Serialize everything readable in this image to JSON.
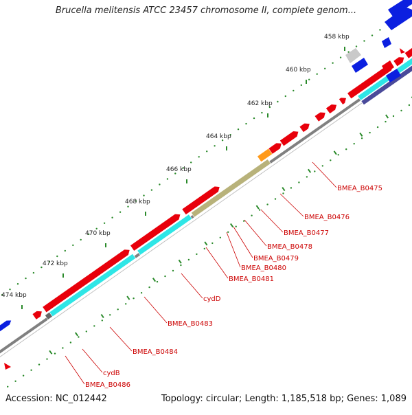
{
  "map": {
    "title": "Brucella melitensis ATCC 23457 chromosome II, complete genom...",
    "accession": "Accession: NC_012442",
    "summary": "Topology: circular; Length: 1,185,518 bp; Genes: 1,089"
  },
  "colors": {
    "backbone": "#808080",
    "forward_gene": "#e8000b",
    "cds": "#2ee6e6",
    "cds_alt": "#b8b27a",
    "cds_dark": "#4a4a9a",
    "orange": "#ff9a1a",
    "blue_gene": "#0b1fe0",
    "gray_gene": "#c9c9c9",
    "tick": "#2a8a2a",
    "label": "#cc0000"
  },
  "kbp_labels": [
    "458 kbp",
    "460 kbp",
    "462 kbp",
    "464 kbp",
    "466 kbp",
    "468 kbp",
    "470 kbp",
    "472 kbp",
    "474 kbp"
  ],
  "gene_labels": [
    "BMEA_B0475",
    "BMEA_B0476",
    "BMEA_B0477",
    "BMEA_B0478",
    "BMEA_B0479",
    "BMEA_B0480",
    "BMEA_B0481",
    "cydD",
    "BMEA_B0483",
    "BMEA_B0484",
    "cydB",
    "BMEA_B0486"
  ]
}
